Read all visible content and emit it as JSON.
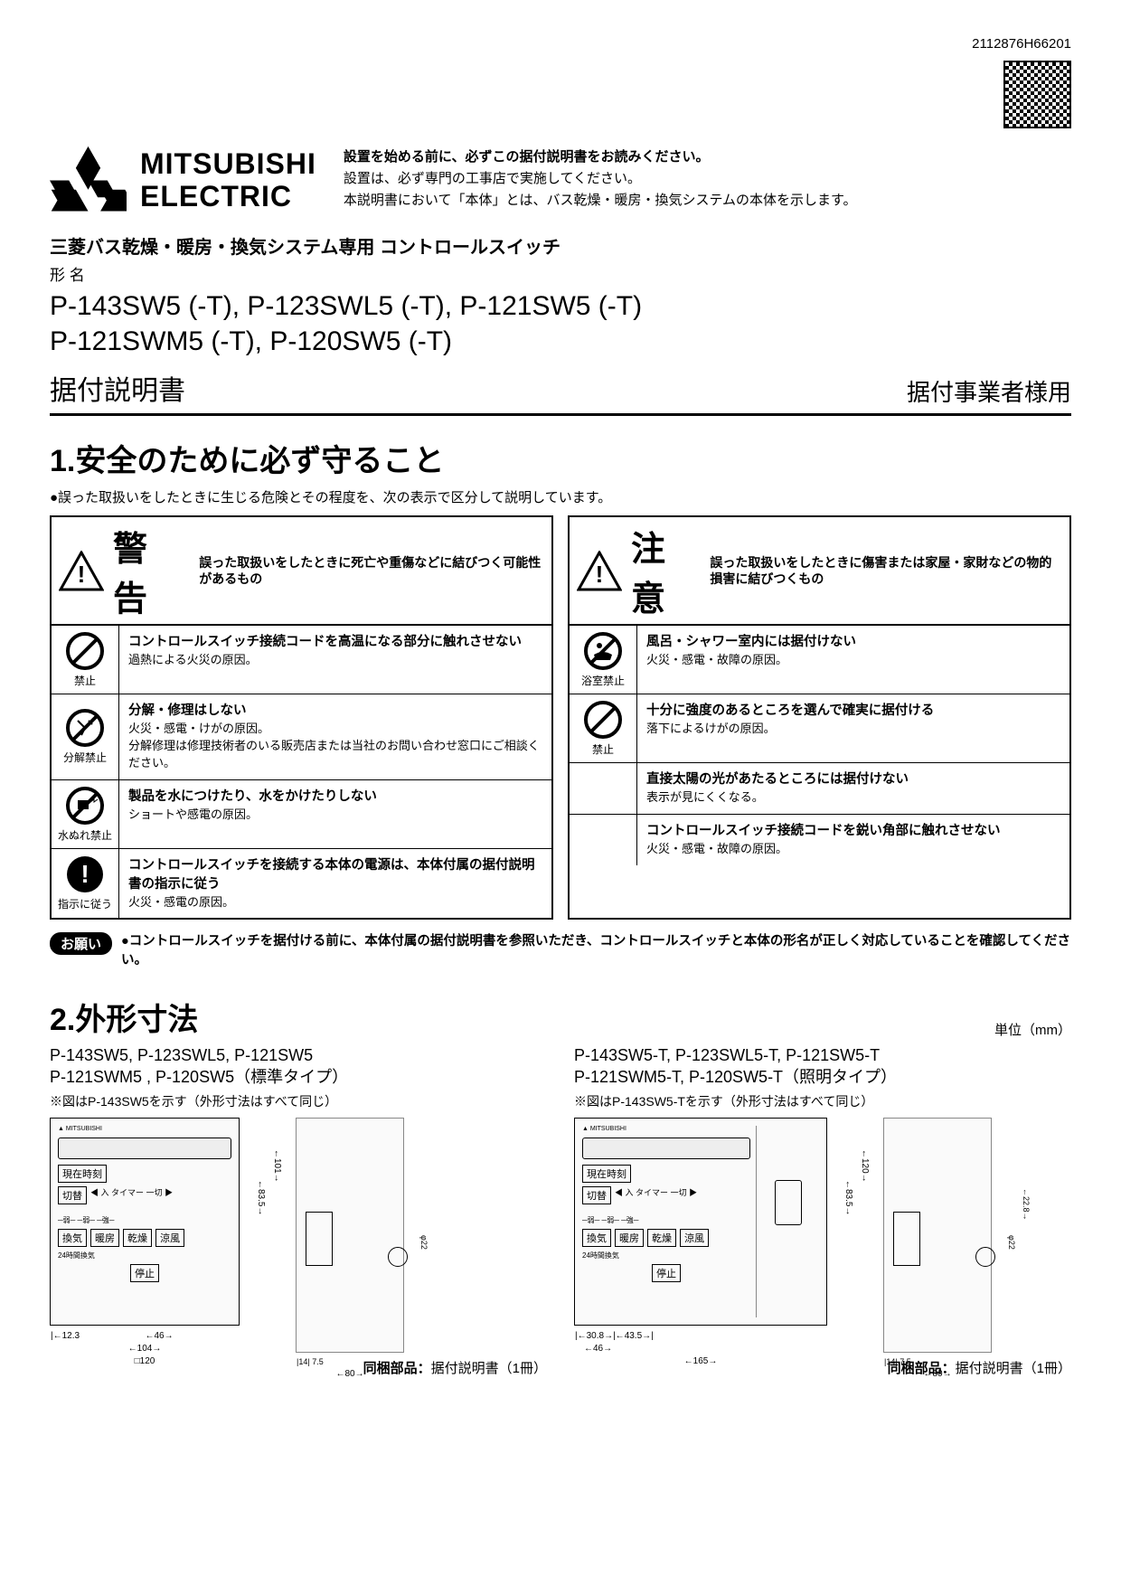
{
  "doc_number": "2112876H66201",
  "logo": {
    "brand_line1": "MITSUBISHI",
    "brand_line2": "ELECTRIC"
  },
  "intro": {
    "line1": "設置を始める前に、必ずこの据付説明書をお読みください。",
    "line2": "設置は、必ず専門の工事店で実施してください。",
    "line3": "本説明書において「本体」とは、バス乾燥・暖房・換気システムの本体を示します。"
  },
  "product_line": "三菱バス乾燥・暖房・換気システム専用 コントロールスイッチ",
  "form_label": "形 名",
  "models_line1": "P-143SW5 (-T), P-123SWL5 (-T), P-121SW5 (-T)",
  "models_line2": "P-121SWM5 (-T), P-120SW5 (-T)",
  "doc_title": "据付説明書",
  "audience": "据付事業者様用",
  "section1_title": "1.安全のために必ず守ること",
  "section1_intro": "●誤った取扱いをしたときに生じる危険とその程度を、次の表示で区分して説明しています。",
  "warning": {
    "word": "警告",
    "desc": "誤った取扱いをしたときに死亡や重傷などに結びつく可能性があるもの",
    "items": [
      {
        "icon": "prohibit",
        "icon_label": "禁止",
        "title": "コントロールスイッチ接続コードを高温になる部分に触れさせない",
        "body": "過熱による火災の原因。"
      },
      {
        "icon": "no-disassemble",
        "icon_label": "分解禁止",
        "title": "分解・修理はしない",
        "body": "火災・感電・けがの原因。\n分解修理は修理技術者のいる販売店または当社のお問い合わせ窓口にご相談ください。"
      },
      {
        "icon": "no-water",
        "icon_label": "水ぬれ禁止",
        "title": "製品を水につけたり、水をかけたりしない",
        "body": "ショートや感電の原因。"
      },
      {
        "icon": "follow",
        "icon_label": "指示に従う",
        "title": "コントロールスイッチを接続する本体の電源は、本体付属の据付説明書の指示に従う",
        "body": "火災・感電の原因。"
      }
    ]
  },
  "caution": {
    "word": "注意",
    "desc": "誤った取扱いをしたときに傷害または家屋・家財などの物的損害に結びつくもの",
    "items": [
      {
        "icon": "no-bath",
        "icon_label": "浴室禁止",
        "title": "風呂・シャワー室内には据付けない",
        "body": "火災・感電・故障の原因。"
      },
      {
        "icon": "prohibit",
        "icon_label": "禁止",
        "title": "十分に強度のあるところを選んで確実に据付ける",
        "body": "落下によるけがの原因。"
      },
      {
        "icon": "none",
        "icon_label": "",
        "title": "直接太陽の光があたるところには据付けない",
        "body": "表示が見にくくなる。"
      },
      {
        "icon": "none",
        "icon_label": "",
        "title": "コントロールスイッチ接続コードを鋭い角部に触れさせない",
        "body": "火災・感電・故障の原因。"
      }
    ]
  },
  "request": {
    "badge": "お願い",
    "text": "●コントロールスイッチを据付ける前に、本体付属の据付説明書を参照いただき、コントロールスイッチと本体の形名が正しく対応していることを確認してください。"
  },
  "section2_title": "2.外形寸法",
  "unit_label": "単位（mm）",
  "dim_left": {
    "models_l1": "P-143SW5, P-123SWL5, P-121SW5",
    "models_l2": "P-121SWM5 , P-120SW5（標準タイプ）",
    "note": "※図はP-143SW5を示す（外形寸法はすべて同じ）"
  },
  "dim_right": {
    "models_l1": "P-143SW5-T, P-123SWL5-T, P-121SW5-T",
    "models_l2": "P-121SWM5-T, P-120SW5-T（照明タイプ）",
    "note": "※図はP-143SW5-Tを示す（外形寸法はすべて同じ）"
  },
  "diagram": {
    "btn_labels": {
      "current": "現在時刻",
      "switch": "切替",
      "timer": "タイマー",
      "vent": "換気",
      "heat": "暖房",
      "dry": "乾燥",
      "cool": "涼風",
      "stop": "停止",
      "in": "入",
      "off": "一切"
    },
    "dims_std": {
      "w": "104",
      "w2": "46",
      "w3": "12.3",
      "box": "□120",
      "h1": "83.5",
      "h2": "101",
      "side_w": "80",
      "side_a": "14",
      "side_b": "7.5",
      "phi": "φ22"
    },
    "dims_light": {
      "w": "165",
      "w2": "46",
      "w3": "30.8",
      "w4": "43.5",
      "h1": "83.5",
      "h2": "120",
      "side_w": "80",
      "side_a": "14",
      "side_b": "7.5",
      "phi": "φ22",
      "h3": "22.8"
    }
  },
  "included_label": "同梱部品：",
  "included_item": "据付説明書（1冊）",
  "colors": {
    "text": "#000000",
    "bg": "#ffffff",
    "border": "#000000"
  }
}
